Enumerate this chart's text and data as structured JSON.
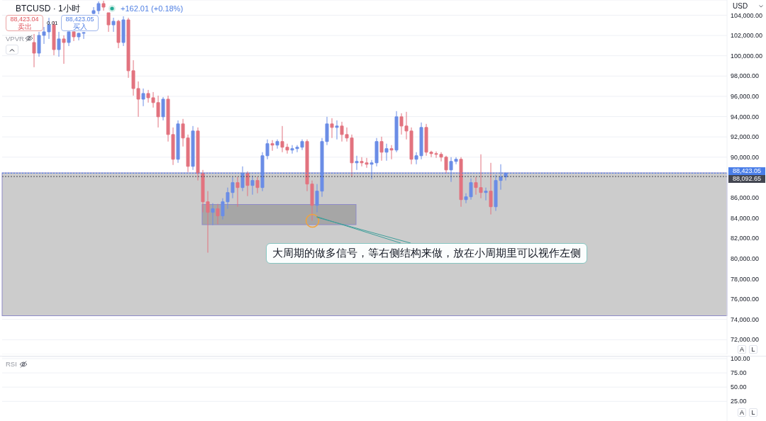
{
  "chart_data": [
    {
      "type": "candlestick",
      "title": "BTCUSD · 1小时",
      "subtitle": "+162.01 (+0.18%)",
      "ylabel": "USD",
      "categories": [
        null,
        null,
        null,
        null,
        null,
        null,
        null,
        null,
        null,
        null,
        null,
        null,
        null,
        null,
        null,
        null,
        null,
        null,
        null,
        null,
        null,
        null,
        null,
        null,
        null,
        null,
        null,
        null,
        null,
        null,
        null,
        null,
        null,
        null,
        null,
        null,
        null,
        null,
        null,
        null,
        null,
        null,
        null,
        null,
        null,
        null,
        null,
        null,
        null,
        null,
        null,
        null,
        null,
        null,
        null,
        null,
        null,
        null,
        null,
        null,
        null,
        null,
        null,
        null,
        null,
        null,
        null,
        null,
        null,
        null,
        null,
        null,
        null,
        null,
        null,
        null,
        null,
        null,
        null,
        null,
        null,
        null,
        null,
        null,
        null,
        null,
        null,
        null,
        null,
        null,
        null,
        null,
        null,
        null,
        null,
        null,
        null,
        null,
        null,
        null,
        null,
        null,
        null,
        null,
        null,
        null,
        null,
        null,
        null,
        null,
        null,
        null,
        null,
        null,
        null,
        null,
        null,
        null,
        null,
        null,
        null,
        null,
        null,
        null,
        null,
        null,
        null,
        null,
        null,
        null,
        null,
        null,
        null,
        null,
        null,
        null,
        null,
        null,
        null,
        null,
        null,
        null,
        null,
        null,
        null,
        null
      ],
      "ohlc": [
        null,
        null,
        null,
        null,
        null,
        null,
        [
          101310,
          102150,
          98870,
          100260
        ],
        [
          100260,
          102360,
          99910,
          102010
        ],
        [
          102010,
          102840,
          101170,
          102360
        ],
        [
          102360,
          103750,
          101660,
          103050
        ],
        [
          103050,
          103400,
          100050,
          100610
        ],
        [
          100610,
          102360,
          99910,
          101660
        ],
        [
          101660,
          102010,
          99210,
          101310
        ],
        [
          101310,
          102360,
          100960,
          102360
        ],
        [
          102360,
          102360,
          101450,
          101870
        ],
        [
          101870,
          102290,
          101520,
          102220
        ],
        [
          102220,
          102350,
          101660,
          102290
        ],
        null,
        [
          104170,
          104800,
          104100,
          104450
        ],
        [
          104450,
          105360,
          104100,
          105150
        ],
        [
          105150,
          105430,
          104450,
          104800
        ],
        [
          104240,
          104240,
          102360,
          103050
        ],
        [
          103050,
          103750,
          102360,
          103400
        ],
        [
          103400,
          103540,
          100750,
          101310
        ],
        [
          101310,
          103890,
          100960,
          103540
        ],
        [
          103540,
          103750,
          97820,
          98520
        ],
        [
          98520,
          99560,
          96070,
          96770
        ],
        [
          96770,
          97470,
          93980,
          95720
        ],
        [
          95720,
          96770,
          95030,
          96280
        ],
        [
          96280,
          96630,
          95380,
          95860
        ],
        [
          95860,
          96420,
          94890,
          95380
        ],
        [
          95380,
          96070,
          92930,
          93980
        ],
        [
          93980,
          95930,
          93630,
          95720
        ],
        [
          95720,
          96070,
          91540,
          92230
        ],
        [
          92230,
          92930,
          89230,
          89790
        ],
        [
          89790,
          93630,
          89440,
          93280
        ],
        [
          93280,
          93770,
          91050,
          91890
        ],
        [
          91890,
          92230,
          88530,
          89090
        ],
        [
          89090,
          93070,
          88740,
          92580
        ],
        [
          92580,
          92930,
          87700,
          88400
        ],
        [
          88400,
          88740,
          84560,
          85600
        ],
        [
          85600,
          86650,
          80580,
          84560
        ],
        [
          84560,
          85460,
          83300,
          84910
        ],
        [
          84910,
          85390,
          83370,
          84210
        ],
        [
          84210,
          85950,
          83860,
          85600
        ],
        [
          85600,
          87000,
          84910,
          86510
        ],
        [
          86510,
          88050,
          85950,
          87490
        ],
        [
          87490,
          88050,
          85110,
          87000
        ],
        [
          87000,
          89090,
          86650,
          88400
        ],
        [
          88400,
          88600,
          86160,
          87210
        ],
        [
          87210,
          88190,
          86300,
          87700
        ],
        [
          87700,
          88050,
          86440,
          87000
        ],
        [
          87000,
          90490,
          86650,
          90140
        ],
        [
          90140,
          91750,
          89790,
          91330
        ],
        [
          91330,
          91680,
          90630,
          91190
        ],
        [
          91190,
          91750,
          90840,
          91540
        ],
        [
          91540,
          93070,
          90490,
          90980
        ],
        [
          90980,
          91330,
          90350,
          90700
        ],
        [
          90700,
          91190,
          90350,
          90840
        ],
        [
          90840,
          91190,
          90490,
          90980
        ],
        [
          90980,
          91750,
          90700,
          91540
        ],
        [
          91540,
          91750,
          86650,
          87350
        ],
        [
          87350,
          87700,
          83720,
          85250
        ],
        [
          85250,
          87350,
          84560,
          86650
        ],
        [
          86650,
          91890,
          86090,
          91540
        ],
        [
          91540,
          93980,
          91190,
          93280
        ],
        [
          93280,
          93840,
          91890,
          92930
        ],
        [
          92930,
          93630,
          91750,
          93070
        ],
        [
          93070,
          93490,
          91540,
          92230
        ],
        [
          92230,
          92930,
          91540,
          91890
        ],
        [
          91890,
          92230,
          88050,
          89440
        ],
        [
          89440,
          90140,
          88740,
          89580
        ],
        [
          89580,
          90000,
          89090,
          89440
        ],
        [
          89440,
          89930,
          88950,
          89300
        ],
        [
          89300,
          89720,
          87840,
          89440
        ],
        [
          89440,
          91890,
          89090,
          91540
        ],
        [
          91540,
          92020,
          89650,
          90490
        ],
        [
          90490,
          91330,
          89650,
          90840
        ],
        [
          90840,
          91190,
          89790,
          90700
        ],
        [
          90700,
          94540,
          90490,
          93980
        ],
        [
          93980,
          94330,
          92230,
          93070
        ],
        [
          93070,
          94470,
          91750,
          92580
        ],
        [
          92580,
          92930,
          89300,
          89790
        ],
        [
          89790,
          90490,
          89300,
          90140
        ],
        [
          90140,
          93420,
          89790,
          92930
        ],
        [
          92930,
          93280,
          90140,
          90490
        ],
        [
          90490,
          90630,
          90000,
          90350
        ],
        [
          90350,
          90560,
          89930,
          90280
        ],
        [
          90280,
          90490,
          89580,
          90000
        ],
        [
          90000,
          90140,
          88400,
          88740
        ],
        [
          88740,
          90000,
          87560,
          89580
        ],
        [
          89580,
          90000,
          89300,
          89790
        ],
        [
          89790,
          90000,
          85110,
          85810
        ],
        [
          85810,
          86440,
          85460,
          86090
        ],
        [
          86090,
          87910,
          85810,
          87490
        ],
        [
          87490,
          88050,
          86300,
          87000
        ],
        [
          87000,
          90280,
          85950,
          86510
        ],
        [
          86510,
          87000,
          85740,
          86650
        ],
        [
          86650,
          89440,
          84350,
          85110
        ],
        [
          85110,
          88260,
          84700,
          87700
        ],
        [
          87700,
          89300,
          86790,
          88050
        ],
        [
          88050,
          88460,
          87700,
          88423.05
        ],
        null,
        null,
        null,
        null,
        null,
        null,
        null,
        null,
        null,
        null,
        null,
        null,
        null,
        null,
        null,
        null,
        null,
        null,
        null,
        null,
        null,
        null,
        null,
        null,
        null,
        null,
        null,
        null,
        null,
        null,
        null,
        null,
        null,
        null,
        null,
        null,
        null,
        null,
        null,
        null,
        null,
        null,
        null,
        null
      ],
      "colors": [
        null,
        null,
        null,
        null,
        null,
        null,
        "#e2737f",
        "#6b8de6",
        "#6b8de6",
        "#6b8de6",
        "#e2737f",
        "#6b8de6",
        "#e2737f",
        "#6b8de6",
        "#e2737f",
        "#6b8de6",
        "#6b8de6",
        null,
        "#6b8de6",
        "#6b8de6",
        "#e2737f",
        "#e2737f",
        "#6b8de6",
        "#e2737f",
        "#6b8de6",
        "#e2737f",
        "#e2737f",
        "#e2737f",
        "#6b8de6",
        "#e2737f",
        "#e2737f",
        "#e2737f",
        "#6b8de6",
        "#e2737f",
        "#e2737f",
        "#6b8de6",
        "#e2737f",
        "#e2737f",
        "#6b8de6",
        "#e2737f",
        "#e2737f",
        "#e2737f",
        "#6b8de6",
        "#e2737f",
        "#6b8de6",
        "#6b8de6",
        "#6b8de6",
        "#e2737f",
        "#6b8de6",
        "#e2737f",
        "#6b8de6",
        "#e2737f",
        "#6b8de6",
        "#6b8de6",
        "#e2737f",
        "#6b8de6",
        "#e2737f",
        "#e2737f",
        "#6b8de6",
        "#6b8de6",
        "#6b8de6",
        "#e2737f",
        "#e2737f",
        "#6b8de6",
        "#6b8de6",
        "#6b8de6",
        "#e2737f",
        "#6b8de6",
        "#e2737f",
        "#e2737f",
        "#e2737f",
        "#6b8de6",
        "#e2737f",
        "#e2737f",
        "#6b8de6",
        "#6b8de6",
        "#e2737f",
        "#6b8de6",
        "#e2737f",
        "#6b8de6",
        "#e2737f",
        "#e2737f",
        "#e2737f",
        "#6b8de6",
        "#6b8de6",
        "#e2737f",
        "#e2737f",
        "#e2737f",
        "#e2737f",
        "#e2737f",
        "#6b8de6",
        "#6b8de6",
        "#e2737f",
        "#6b8de6",
        "#6b8de6",
        "#e2737f",
        "#e2737f",
        "#6b8de6",
        "#e2737f",
        "#6b8de6",
        "#6b8de6",
        "#6b8de6",
        null,
        null,
        null,
        null,
        null,
        null,
        null,
        null,
        null,
        null,
        null,
        null,
        null,
        null,
        null,
        null,
        null,
        null,
        null,
        null,
        null,
        null,
        null,
        null,
        null,
        null,
        null,
        null,
        null,
        null,
        null,
        null,
        null,
        null,
        null,
        null,
        null,
        null,
        null,
        null,
        null,
        null,
        null,
        null
      ],
      "ylim": [
        70550,
        105500
      ],
      "yticks": [
        {
          "value": 104000,
          "label": "104,000.00"
        },
        {
          "value": 102000,
          "label": "102,000.00"
        },
        {
          "value": 100000,
          "label": "100,000.00"
        },
        {
          "value": 98000,
          "label": "98,000.00"
        },
        {
          "value": 96000,
          "label": "96,000.00"
        },
        {
          "value": 94000,
          "label": "94,000.00"
        },
        {
          "value": 92000,
          "label": "92,000.00"
        },
        {
          "value": 90000,
          "label": "90,000.00"
        },
        {
          "value": 86000,
          "label": "86,000.00"
        },
        {
          "value": 84000,
          "label": "84,000.00"
        },
        {
          "value": 82000,
          "label": "82,000.00"
        },
        {
          "value": 80000,
          "label": "80,000.00"
        },
        {
          "value": 78000,
          "label": "78,000.00"
        },
        {
          "value": 76000,
          "label": "76,000.00"
        },
        {
          "value": 74000,
          "label": "74,000.00"
        },
        {
          "value": 72000,
          "label": "72,000.00"
        }
      ],
      "grid": "y",
      "tick_labels": "y",
      "ref_lines": [
        {
          "axis": "y",
          "value": 88423.05,
          "label": "88,423.05",
          "color": "#4a7ee8",
          "line_style": "dotted"
        },
        {
          "axis": "y",
          "value": 88092.65,
          "label": "88,092.65",
          "color": "#434651",
          "line_style": "dotted"
        }
      ],
      "bands": [
        {
          "axis": "y",
          "from": 74360,
          "to": 88450,
          "color": "#cccccc"
        }
      ],
      "annotations": [
        "88,423.04",
        "卖出",
        "0.01",
        "88,423.05",
        "买入",
        "VPVR",
        "A",
        "L",
        "大周期的做多信号，等右侧结构来做，放在小周期里可以视作左侧"
      ]
    },
    {
      "type": "line",
      "title": "RSI",
      "categories": [
        null,
        null,
        null,
        null,
        null,
        null,
        null,
        null,
        null,
        null,
        null,
        null,
        null,
        null,
        null,
        null,
        null,
        null,
        null,
        null,
        null,
        null,
        null,
        null,
        null,
        null,
        null,
        null,
        null,
        null,
        null,
        null,
        null,
        null,
        null,
        null,
        null,
        null,
        null,
        null,
        null,
        null,
        null,
        null,
        null,
        null,
        null,
        null,
        null,
        null,
        null,
        null,
        null,
        null,
        null,
        null,
        null,
        null,
        null,
        null,
        null,
        null,
        null,
        null,
        null,
        null,
        null,
        null,
        null,
        null,
        null,
        null,
        null,
        null,
        null,
        null,
        null,
        null,
        null,
        null,
        null,
        null,
        null,
        null,
        null,
        null,
        null,
        null,
        null,
        null,
        null,
        null,
        null,
        null,
        null,
        null,
        null,
        null,
        null,
        null,
        null,
        null,
        null,
        null,
        null,
        null,
        null,
        null,
        null,
        null,
        null,
        null,
        null,
        null,
        null,
        null,
        null,
        null,
        null,
        null,
        null,
        null,
        null,
        null,
        null,
        null,
        null,
        null,
        null,
        null,
        null,
        null,
        null,
        null,
        null,
        null,
        null,
        null,
        null,
        null,
        null,
        null,
        null,
        null,
        null,
        null
      ],
      "values": [
        null,
        null,
        null,
        null,
        null,
        null,
        null,
        null,
        null,
        null,
        null,
        null,
        null,
        null,
        null,
        null,
        null,
        null,
        null,
        null,
        null,
        null,
        null,
        null,
        null,
        null,
        null,
        null,
        null,
        null,
        null,
        null,
        null,
        null,
        null,
        null,
        null,
        null,
        null,
        null,
        null,
        null,
        null,
        null,
        null,
        null,
        null,
        null,
        null,
        null,
        null,
        null,
        null,
        null,
        null,
        null,
        null,
        null,
        null,
        null,
        null,
        null,
        null,
        null,
        null,
        null,
        null,
        null,
        null,
        null,
        null,
        null,
        null,
        null,
        null,
        null,
        null,
        null,
        null,
        null,
        null,
        null,
        null,
        null,
        null,
        null,
        null,
        null,
        null,
        null,
        null,
        null,
        null,
        null,
        null,
        null,
        null,
        null,
        null,
        null,
        null,
        null,
        null,
        null,
        null,
        null,
        null,
        null,
        null,
        null,
        null,
        null,
        null,
        null,
        null,
        null,
        null,
        null,
        null,
        null,
        null,
        null,
        null,
        null,
        null,
        null,
        null,
        null,
        null,
        null,
        null,
        null,
        null,
        null,
        null,
        null,
        null,
        null,
        null,
        null,
        null,
        null,
        null,
        null,
        null,
        null
      ],
      "ylim": [
        -10.7,
        103.7
      ],
      "yticks": [
        {
          "value": 100,
          "label": "100.00"
        },
        {
          "value": 75,
          "label": "75.00"
        },
        {
          "value": 50,
          "label": "50.00"
        },
        {
          "value": 25,
          "label": "25.00"
        }
      ],
      "grid": "y",
      "tick_labels": "y",
      "annotations": [
        "A",
        "L"
      ]
    }
  ]
}
